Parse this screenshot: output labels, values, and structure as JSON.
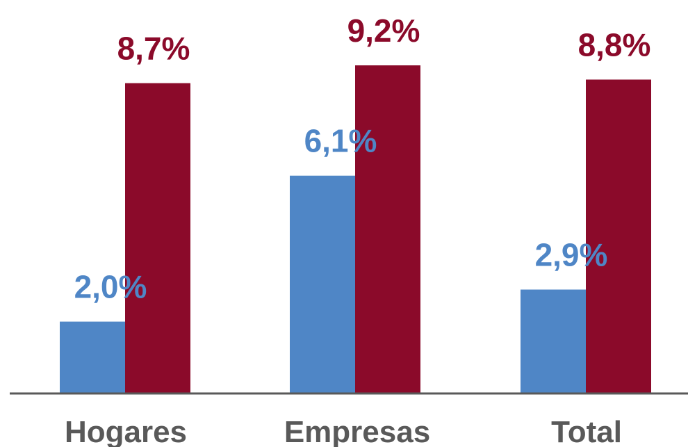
{
  "chart_data": {
    "type": "bar",
    "title": "",
    "xlabel": "",
    "ylabel": "",
    "categories": [
      "Hogares",
      "Empresas",
      "Total"
    ],
    "series": [
      {
        "values": [
          2.0,
          6.1,
          2.9
        ],
        "labels": [
          "2,0%",
          "6,1%",
          "2,9%"
        ],
        "color": "#4F86C6"
      },
      {
        "values": [
          8.7,
          9.2,
          8.8
        ],
        "labels": [
          "8,7%",
          "9,2%",
          "8,8%"
        ],
        "color": "#8B0A2A"
      }
    ],
    "ylim": [
      0,
      10
    ],
    "grid": false,
    "legend": "none",
    "axis_color": "#595959",
    "category_label_color": "#595959"
  }
}
